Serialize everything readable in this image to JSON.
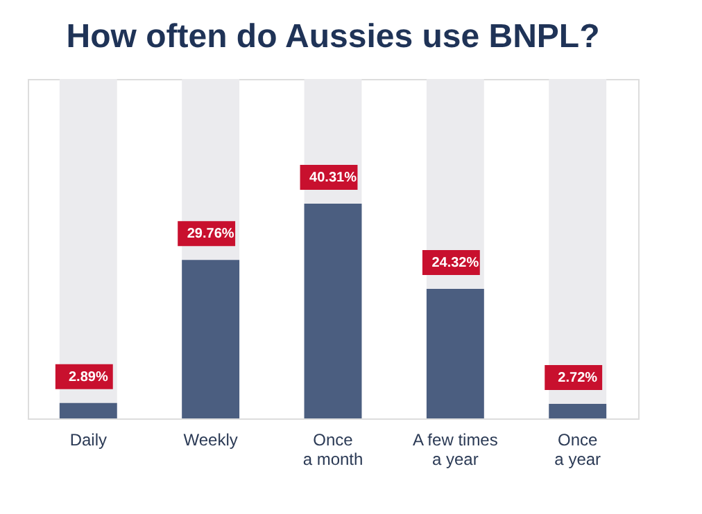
{
  "chart_data": {
    "type": "bar",
    "title": "How often do Aussies use BNPL?",
    "categories": [
      "Daily",
      "Weekly",
      "Once\na month",
      "A few times\na year",
      "Once\na year"
    ],
    "color": "#4b5e80",
    "values": [
      2.89,
      29.76,
      40.31,
      24.32,
      2.72
    ],
    "value_labels": [
      "2.89%",
      "29.76%",
      "40.31%",
      "24.32%",
      "2.72%"
    ],
    "tick_labels": "x"
  }
}
